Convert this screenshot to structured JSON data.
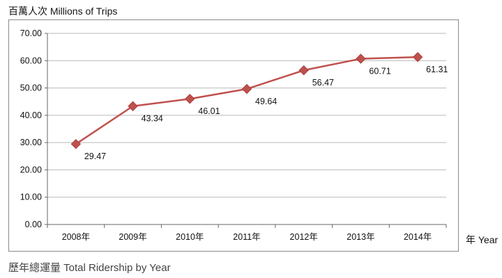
{
  "header": {
    "unit_label": "百萬人次  Millions of  Trips"
  },
  "caption": "歷年總運量 Total Ridership by Year",
  "colors": {
    "series": "#c0504d",
    "grid": "#b9b9b9",
    "frame": "#8a8a8a"
  },
  "chart_data": {
    "type": "line",
    "title": "",
    "xlabel": "年 Year",
    "ylabel": "百萬人次  Millions of  Trips",
    "categories": [
      "2008年",
      "2009年",
      "2010年",
      "2011年",
      "2012年",
      "2013年",
      "2014年"
    ],
    "series": [
      {
        "values": [
          29.47,
          43.34,
          46.01,
          49.64,
          56.47,
          60.71,
          61.31
        ]
      }
    ],
    "data_labels": [
      "29.47",
      "43.34",
      "46.01",
      "49.64",
      "56.47",
      "60.71",
      "61.31"
    ],
    "ylim": [
      0,
      70
    ],
    "yticks": [
      "0.00",
      "10.00",
      "20.00",
      "30.00",
      "40.00",
      "50.00",
      "60.00",
      "70.00"
    ],
    "marker": "diamond",
    "grid": true,
    "legend": "none"
  }
}
